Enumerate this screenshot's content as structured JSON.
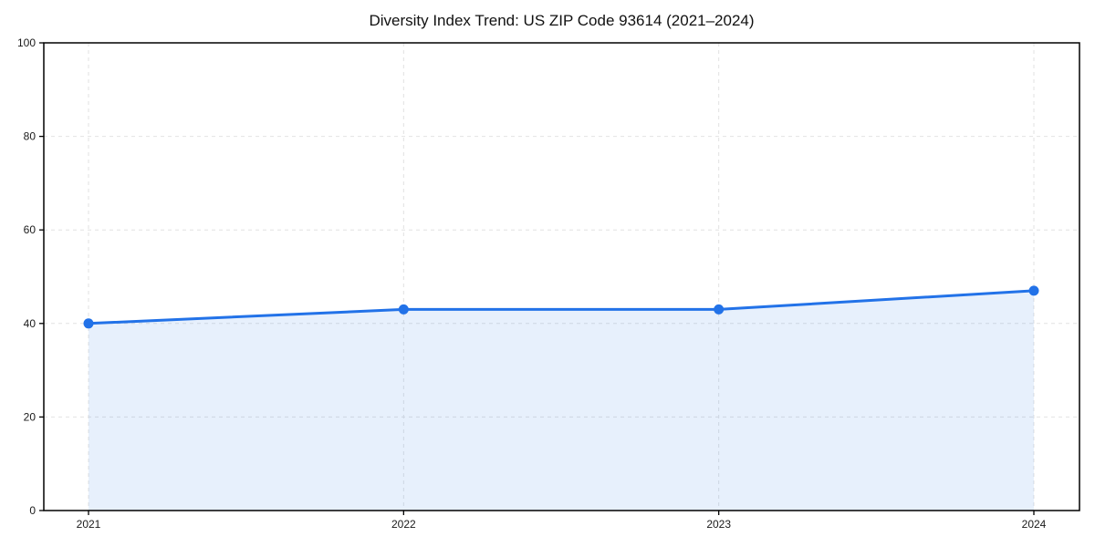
{
  "chart_data": {
    "type": "line",
    "title": "Diversity Index Trend: US ZIP Code 93614 (2021–2024)",
    "categories": [
      "2021",
      "2022",
      "2023",
      "2024"
    ],
    "series": [
      {
        "name": "Diversity Index",
        "values": [
          40,
          43,
          43,
          47
        ]
      }
    ],
    "xlabel": "",
    "ylabel": "",
    "ylim": [
      0,
      100
    ],
    "yticks": [
      0,
      20,
      40,
      60,
      80,
      100
    ],
    "grid": true,
    "grid_style": "dashed",
    "legend": false,
    "area_fill": true,
    "marker": "circle",
    "colors": {
      "line": "#2272E8",
      "marker": "#2272E8",
      "area": "#2272E8",
      "area_opacity": 0.11,
      "gridline": "#e2e2e2",
      "axis": "#000000",
      "tick_text": "#1a1a1a",
      "title_text": "#111111",
      "background": "#ffffff"
    }
  }
}
